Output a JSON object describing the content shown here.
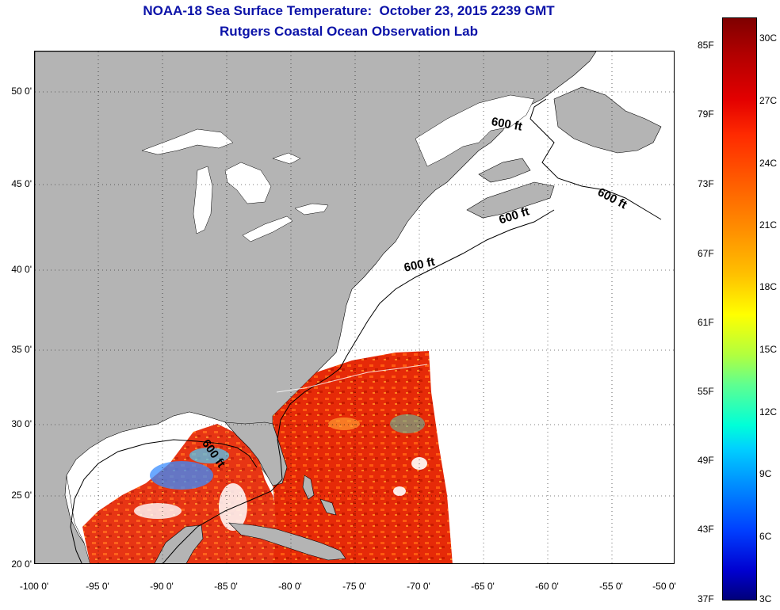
{
  "title": {
    "line1": "NOAA-18 Sea Surface Temperature:  October 23, 2015 2239 GMT",
    "line2": "Rutgers Coastal Ocean Observation Lab"
  },
  "map": {
    "projection": "lat-lon",
    "lon_range": [
      -100,
      -50
    ],
    "lat_range": [
      20,
      52
    ],
    "land_color": "#b4b4b4",
    "water_color": "#ffffff",
    "grid": "dotted",
    "lon_ticks": [
      "-100 0'",
      "-95 0'",
      "-90 0'",
      "-85 0'",
      "-80 0'",
      "-75 0'",
      "-70 0'",
      "-65 0'",
      "-60 0'",
      "-55 0'",
      "-50 0'"
    ],
    "lat_ticks": [
      "20 0'",
      "25 0'",
      "30 0'",
      "35 0'",
      "40 0'",
      "45 0'",
      "50 0'"
    ],
    "contours": {
      "label": "600 ft",
      "labels": [
        "600 ft",
        "600 ft",
        "600 ft",
        "600 ft",
        "600 ft"
      ]
    }
  },
  "colorbar": {
    "fahrenheit_labels": [
      "85F",
      "79F",
      "73F",
      "67F",
      "61F",
      "55F",
      "49F",
      "43F",
      "37F"
    ],
    "celsius_labels": [
      "30C",
      "27C",
      "24C",
      "21C",
      "18C",
      "15C",
      "12C",
      "9C",
      "6C",
      "3C"
    ],
    "colors_top_to_bottom": [
      "#7f0000",
      "#e30000",
      "#ff5500",
      "#ffc000",
      "#ffff00",
      "#5fff90",
      "#00ffd8",
      "#0090ff",
      "#0000d0",
      "#00007a"
    ]
  }
}
